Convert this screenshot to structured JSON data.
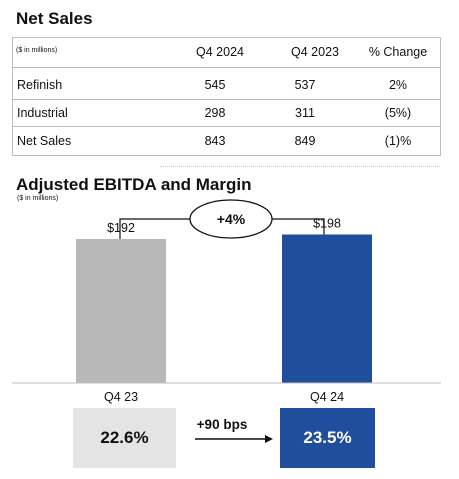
{
  "net_sales": {
    "title": "Net Sales",
    "unit_note": "($ in millions)",
    "columns": [
      "Q4 2024",
      "Q4 2023",
      "% Change"
    ],
    "rows": [
      {
        "label": "Refinish",
        "q4_2024": "545",
        "q4_2023": "537",
        "change": "2%"
      },
      {
        "label": "Industrial",
        "q4_2024": "298",
        "q4_2023": "311",
        "change": "(5%)"
      },
      {
        "label": "Net Sales",
        "q4_2024": "843",
        "q4_2023": "849",
        "change": "(1)%"
      }
    ]
  },
  "ebitda": {
    "title": "Adjusted EBITDA and Margin",
    "unit_note": "($ in millions)",
    "growth_label": "+4%",
    "margin_change_label": "+90 bps",
    "margins": [
      {
        "label": "22.6%",
        "color": "#e4e4e4",
        "text_color": "#111111"
      },
      {
        "label": "23.5%",
        "color": "#1f4e9c",
        "text_color": "#ffffff"
      }
    ]
  },
  "chart_data": {
    "type": "bar",
    "title": "Adjusted EBITDA and Margin",
    "categories": [
      "Q4 23",
      "Q4 24"
    ],
    "values": [
      192,
      198
    ],
    "value_labels": [
      "$192",
      "$198"
    ],
    "colors": [
      "#b8b8b8",
      "#1f4e9c"
    ],
    "ylim": [
      0,
      240
    ],
    "xlabel": "",
    "ylabel": ""
  }
}
